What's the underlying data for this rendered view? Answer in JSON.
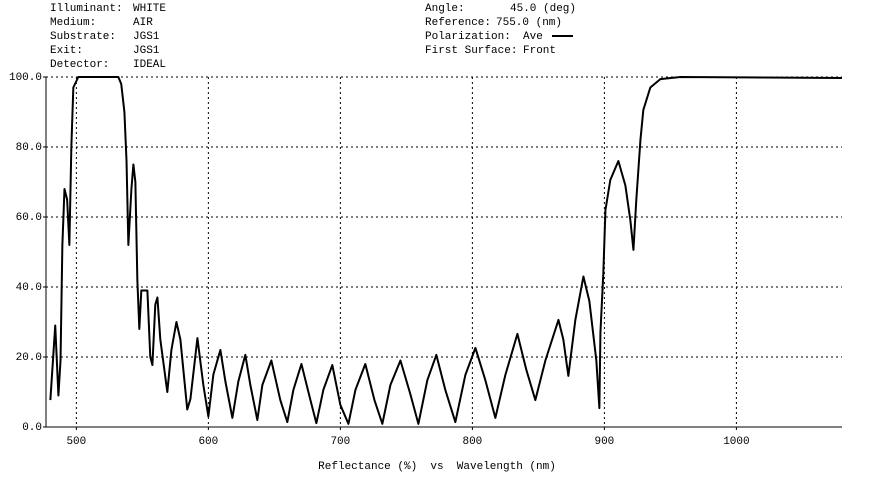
{
  "chart_data": {
    "type": "line",
    "info": [
      {
        "label": "Illuminant:",
        "value": "WHITE"
      },
      {
        "label": "Medium:",
        "value": "AIR"
      },
      {
        "label": "Substrate:",
        "value": "JGS1"
      },
      {
        "label": "Exit:",
        "value": "JGS1"
      },
      {
        "label": "Detector:",
        "value": "IDEAL"
      },
      {
        "label": "Angle:",
        "value": "45.0 (deg)"
      },
      {
        "label": "Reference:",
        "value": "755.0 (nm)"
      },
      {
        "label": "Polarization:"
      },
      {
        "label": "First Surface:",
        "value": "Front"
      }
    ],
    "x_label": "Reflectance (%)  vs  Wavelength (nm)",
    "xlim": [
      477,
      1080
    ],
    "xticks": [
      500,
      600,
      700,
      800,
      900,
      1000
    ],
    "ylim": [
      0,
      100
    ],
    "yticks": [
      {
        "value": 0,
        "label": "0.0"
      },
      {
        "value": 20,
        "label": "20.0"
      },
      {
        "value": 40,
        "label": "40.0"
      },
      {
        "value": 60,
        "label": "60.0"
      },
      {
        "value": 80,
        "label": "80.0"
      },
      {
        "value": 100,
        "label": "100.0"
      }
    ],
    "grid": true,
    "x": [
      480.3,
      484,
      486.4,
      488,
      489.4,
      491,
      493,
      494.7,
      496.2,
      497.7,
      501.5,
      531.8,
      534,
      536.4,
      538,
      539.4,
      541.7,
      543.2,
      544.7,
      546.2,
      547.7,
      549.2,
      551.5,
      553.8,
      556,
      557.6,
      559.8,
      561.4,
      563.6,
      568.9,
      572,
      575.8,
      578.8,
      584,
      586.4,
      591.7,
      596.2,
      600,
      603.8,
      609.1,
      612.9,
      618.2,
      622.7,
      628,
      631.8,
      637.1,
      640.9,
      647.7,
      654.5,
      659.8,
      664.4,
      670.5,
      677.3,
      681.8,
      687.1,
      693.9,
      700,
      706.1,
      711.4,
      718.9,
      725.8,
      731.8,
      737.9,
      745.5,
      753,
      759.1,
      765.9,
      772.7,
      779.5,
      787.1,
      794.7,
      802.3,
      809.8,
      817.4,
      825,
      834.1,
      840.9,
      847.7,
      855.3,
      865.2,
      868.9,
      872.7,
      878,
      884.1,
      888.6,
      893.9,
      896.2,
      897,
      899.2,
      900.8,
      904.5,
      910.6,
      915.9,
      919.7,
      922,
      924.2,
      927.3,
      929.5,
      934.8,
      942.4,
      957.6,
      1080
    ],
    "series": [
      {
        "name": "Ave",
        "color": "#000000",
        "values": [
          7.7,
          29,
          9,
          19,
          52,
          68,
          65,
          52,
          80,
          97,
          100,
          100,
          98,
          90,
          76,
          52,
          68,
          75,
          70,
          42,
          28,
          39,
          39,
          39,
          20,
          17.7,
          35,
          37,
          25,
          10,
          22,
          30,
          25,
          5,
          8,
          25.4,
          12,
          3,
          15,
          22,
          13,
          2.6,
          13,
          20.6,
          12,
          2,
          12,
          19,
          7.7,
          1.4,
          10.6,
          18,
          7.7,
          1.1,
          10.6,
          17.7,
          6.3,
          0.9,
          10.6,
          18,
          7.7,
          0.9,
          12,
          19,
          9.4,
          0.9,
          13.4,
          20.6,
          10.6,
          1.4,
          14.9,
          22.6,
          13.4,
          2.6,
          14.9,
          26.6,
          16.3,
          7.7,
          19,
          30.6,
          25,
          14.6,
          30.6,
          43,
          36,
          19,
          5.4,
          27,
          44,
          62,
          70.6,
          76,
          69,
          59,
          50.6,
          65,
          82,
          90.6,
          97,
          99.4,
          100,
          99.7
        ]
      }
    ]
  }
}
